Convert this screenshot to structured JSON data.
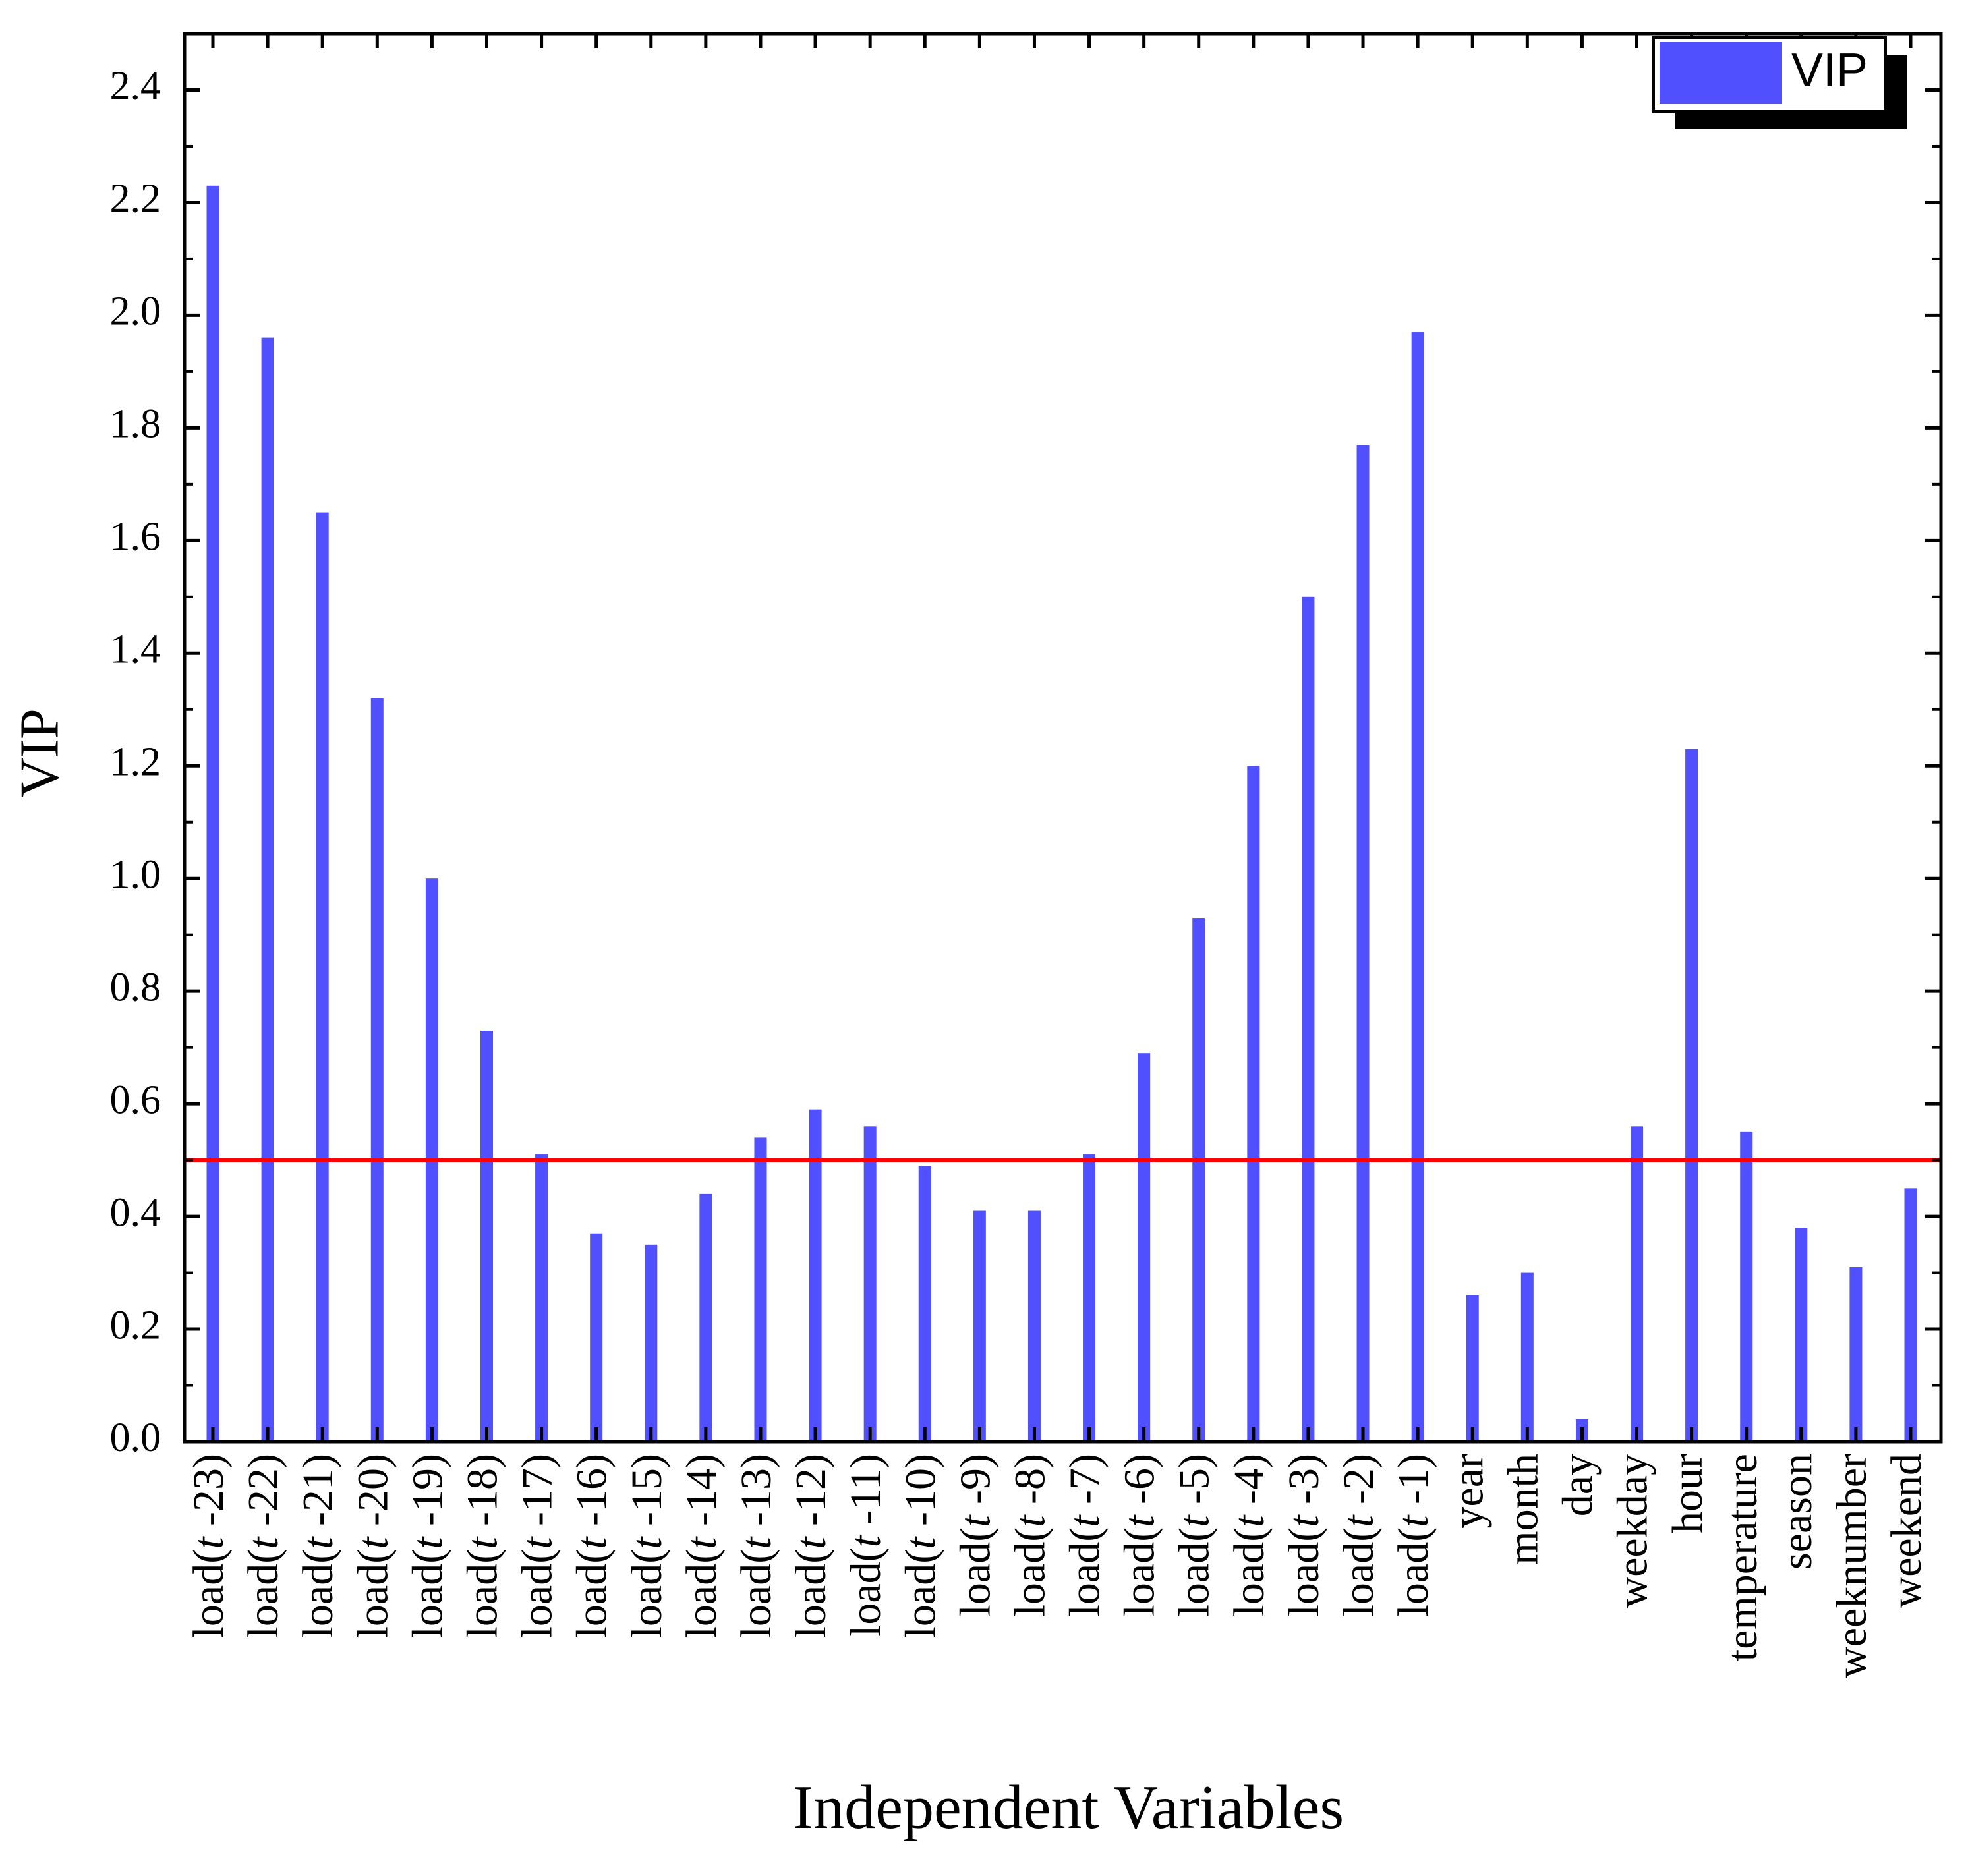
{
  "chart_data": {
    "type": "bar",
    "title": "",
    "xlabel": "Independent Variables",
    "ylabel": "VIP",
    "ylim": [
      0,
      2.5
    ],
    "yticks": [
      "0.0",
      "0.2",
      "0.4",
      "0.6",
      "0.8",
      "1.0",
      "1.2",
      "1.4",
      "1.6",
      "1.8",
      "2.0",
      "2.2",
      "2.4"
    ],
    "grid": false,
    "legend": {
      "position": "top-right",
      "entries": [
        {
          "label": "VIP",
          "color": "#5050ff"
        }
      ]
    },
    "bar_color": "#5050ff",
    "threshold": {
      "value": 0.5,
      "color": "#ff0000"
    },
    "categories": [
      "load(t -23)",
      "load(t -22)",
      "load(t -21)",
      "load(t -20)",
      "load(t -19)",
      "load(t -18)",
      "load(t -17)",
      "load(t -16)",
      "load(t -15)",
      "load(t -14)",
      "load(t -13)",
      "load(t -12)",
      "load(t -11)",
      "load(t -10)",
      "load(t -9)",
      "load(t -8)",
      "load(t -7)",
      "load(t -6)",
      "load(t -5)",
      "load(t -4)",
      "load(t -3)",
      "load(t -2)",
      "load(t -1)",
      "year",
      "month",
      "day",
      "weekday",
      "hour",
      "temperature",
      "season",
      "weeknumber",
      "weekend"
    ],
    "series": [
      {
        "name": "VIP",
        "values": [
          2.23,
          1.96,
          1.65,
          1.32,
          1.0,
          0.73,
          0.51,
          0.37,
          0.35,
          0.44,
          0.54,
          0.59,
          0.56,
          0.49,
          0.41,
          0.41,
          0.51,
          0.69,
          0.93,
          1.2,
          1.5,
          1.77,
          1.97,
          0.26,
          0.3,
          0.04,
          0.56,
          1.23,
          0.55,
          0.38,
          0.31,
          0.45
        ]
      }
    ]
  }
}
